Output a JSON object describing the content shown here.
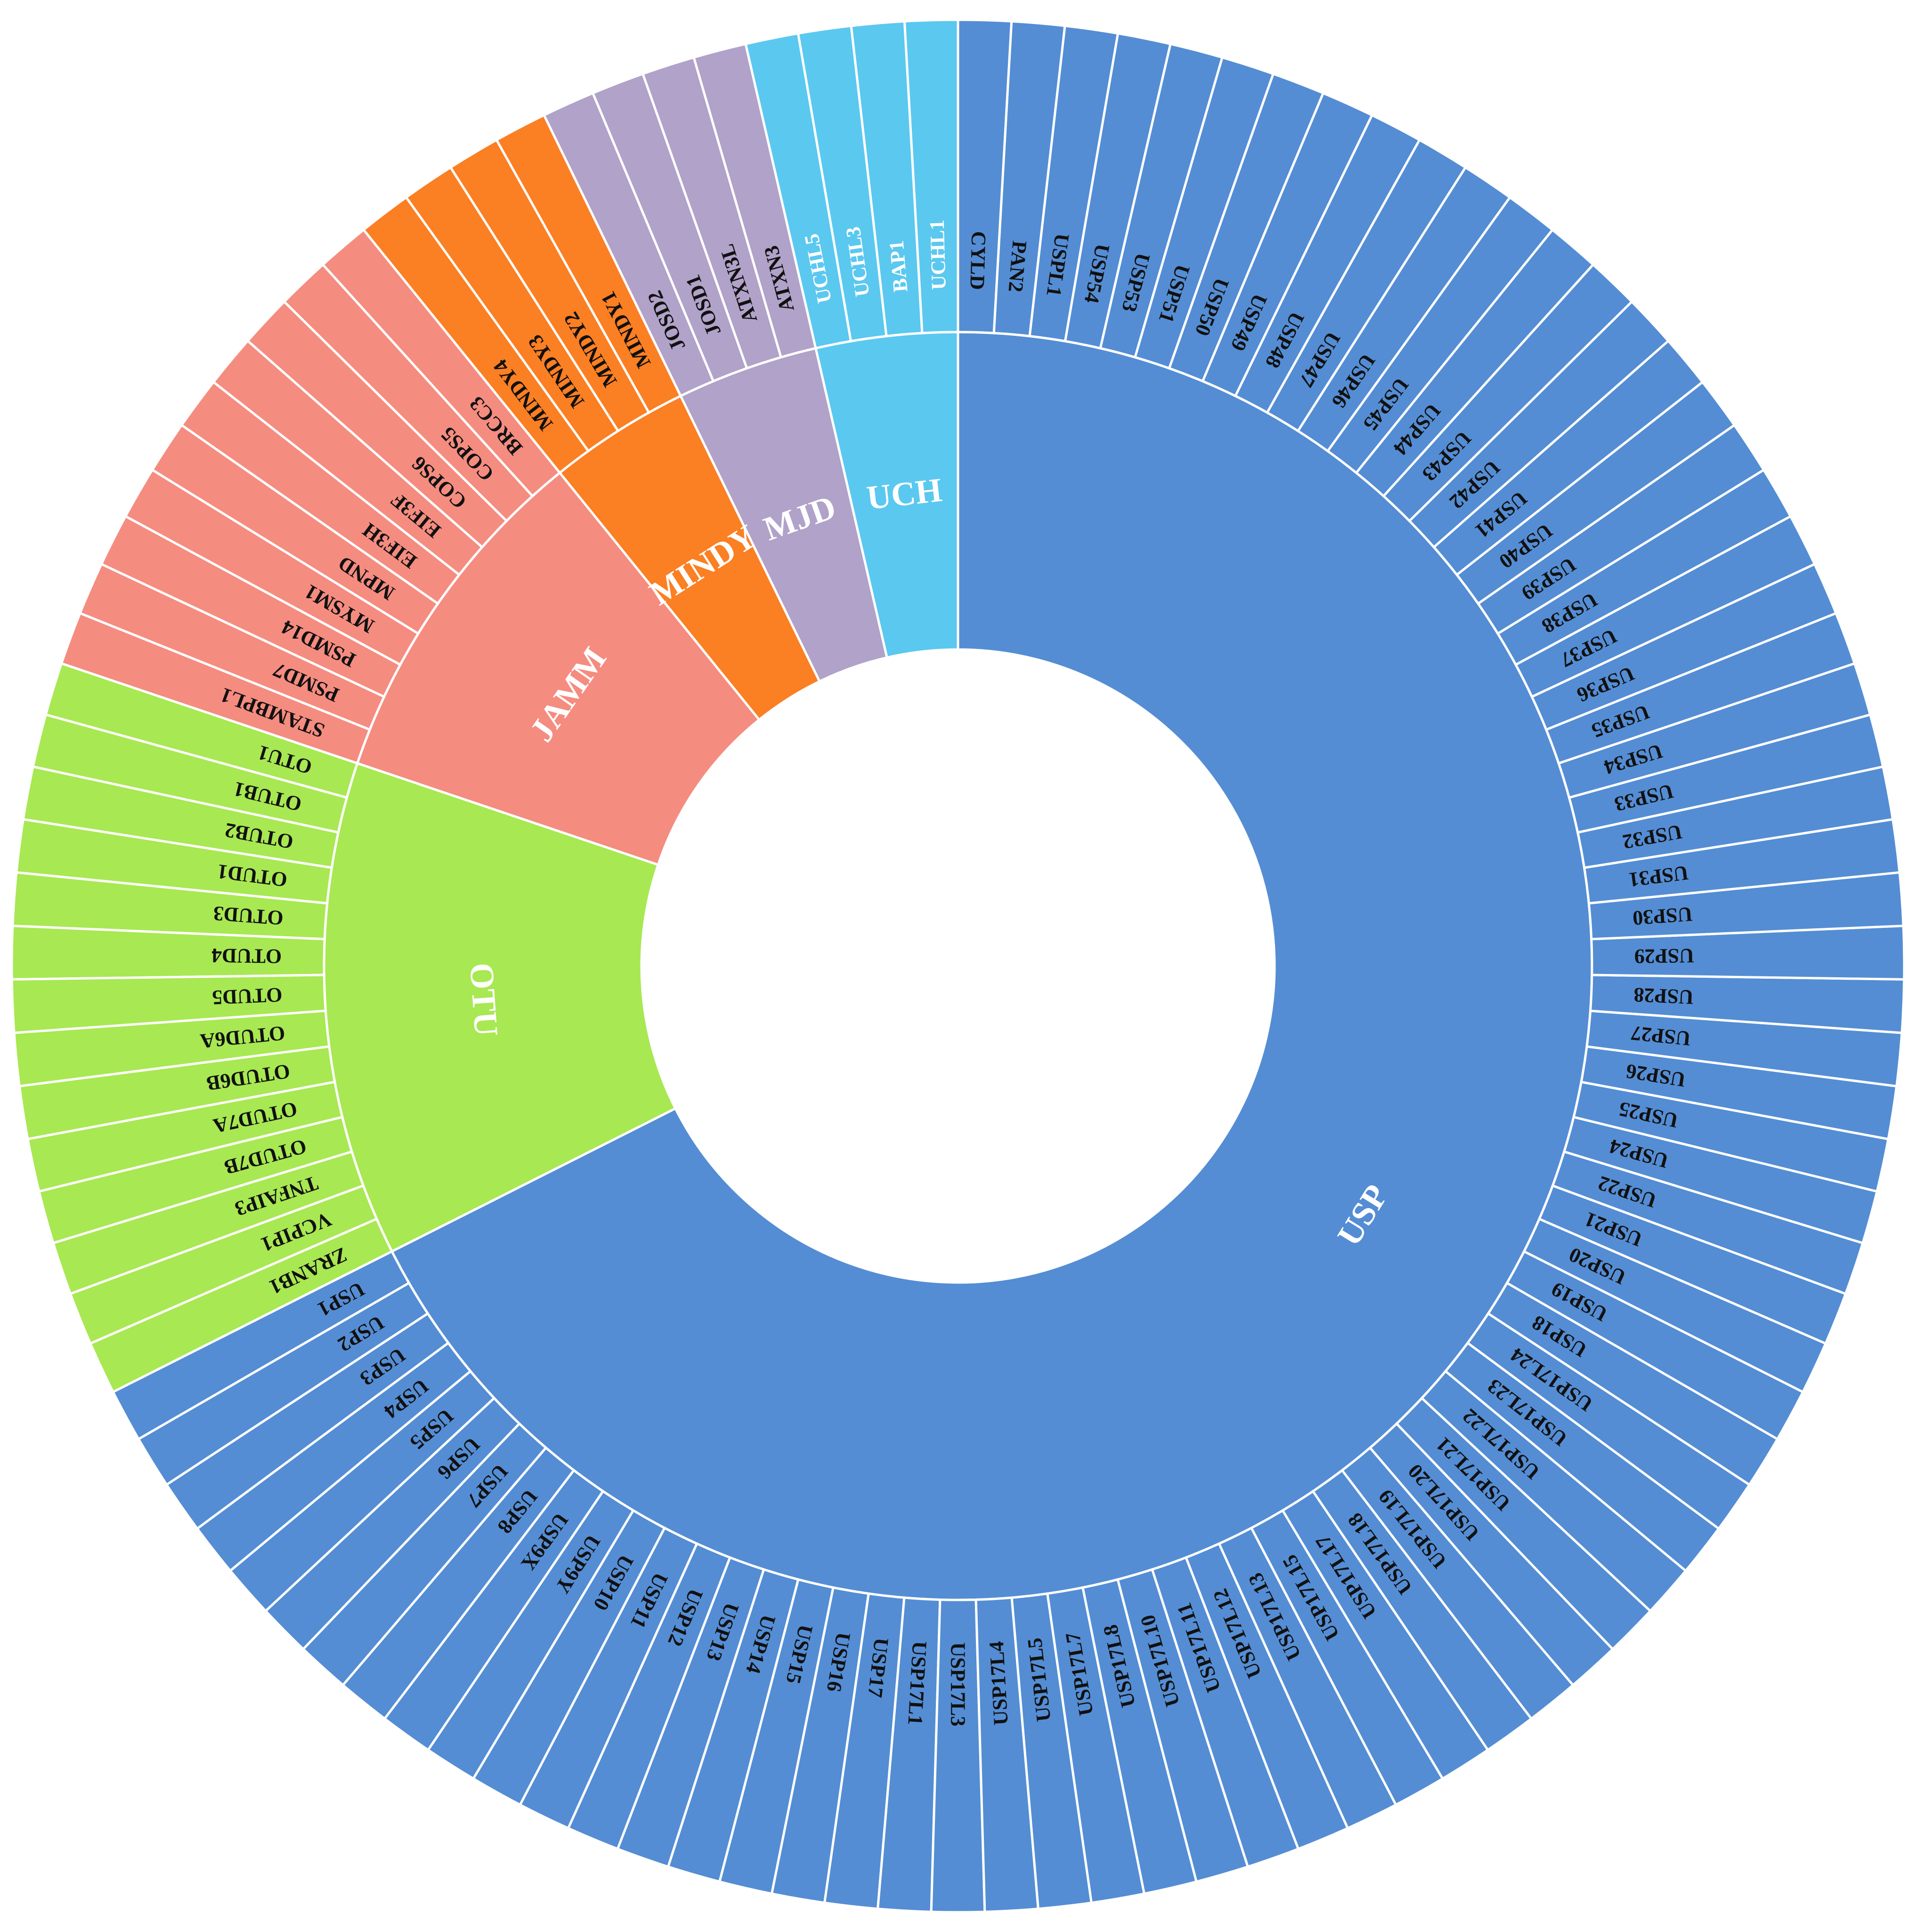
{
  "chart_data": {
    "type": "sunburst",
    "families": [
      {
        "name": "UCH",
        "color": "#5BC8F0",
        "members": [
          "UCHL1",
          "BAP1",
          "UCHL3",
          "UCHL5"
        ]
      },
      {
        "name": "MJD",
        "color": "#B0A2C8",
        "members": [
          "ATXN3",
          "ATXN3L",
          "JOSD1",
          "JOSD2"
        ]
      },
      {
        "name": "MINDY",
        "color": "#FB7F23",
        "members": [
          "MINDY1",
          "MINDY2",
          "MINDY3",
          "MINDY4"
        ]
      },
      {
        "name": "JAMM",
        "color": "#F58C80",
        "members": [
          "BRCC3",
          "COPS5",
          "COPS6",
          "EIF3F",
          "EIF3H",
          "MPND",
          "MYSM1",
          "PSMD14",
          "PSMD7",
          "STAMBPL1"
        ]
      },
      {
        "name": "OTU",
        "color": "#A8E852",
        "members": [
          "OTU1",
          "OTUB1",
          "OTUB2",
          "OTUD1",
          "OTUD3",
          "OTUD4",
          "OTUD5",
          "OTUD6A",
          "OTUD6B",
          "OTUD7A",
          "OTUD7B",
          "TNFAIP3",
          "VCPIP1",
          "ZRANB1"
        ]
      },
      {
        "name": "USP",
        "color": "#548DD4",
        "members": [
          "USP1",
          "USP2",
          "USP3",
          "USP4",
          "USP5",
          "USP6",
          "USP7",
          "USP8",
          "USP9X",
          "USP9Y",
          "USP10",
          "USP11",
          "USP12",
          "USP13",
          "USP14",
          "USP15",
          "USP16",
          "USP17",
          "USP17L1",
          "USP17L3",
          "USP17L4",
          "USP17L5",
          "USP17L7",
          "USP17L8",
          "USP17L10",
          "USP17L11",
          "USP17L12",
          "USP17L13",
          "USP17L15",
          "USP17L17",
          "USP17L18",
          "USP17L19",
          "USP17L20",
          "USP17L21",
          "USP17L22",
          "USP17L23",
          "USP17L24",
          "USP18",
          "USP19",
          "USP20",
          "USP21",
          "USP22",
          "USP24",
          "USP25",
          "USP26",
          "USP27",
          "USP28",
          "USP29",
          "USP30",
          "USP31",
          "USP32",
          "USP33",
          "USP34",
          "USP35",
          "USP36",
          "USP37",
          "USP38",
          "USP39",
          "USP40",
          "USP41",
          "USP42",
          "USP43",
          "USP44",
          "USP45",
          "USP46",
          "USP47",
          "USP48",
          "USP49",
          "USP50",
          "USP51",
          "USP53",
          "USP54",
          "USPL1",
          "PAN2",
          "CYLD"
        ]
      }
    ]
  }
}
